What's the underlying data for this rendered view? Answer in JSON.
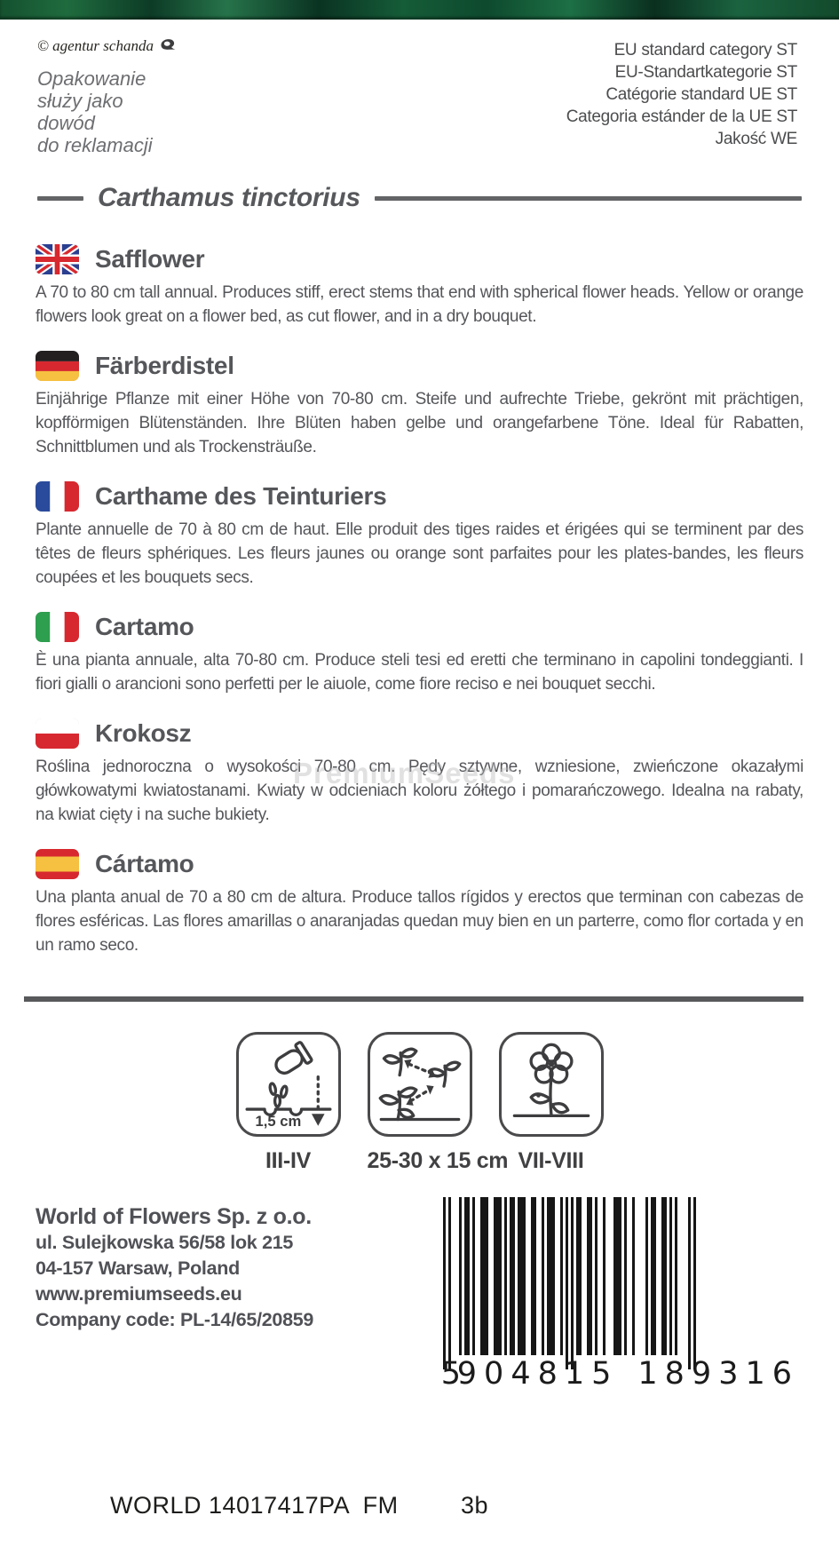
{
  "page": {
    "credit": "© agentur schanda",
    "packaging_note_lines": [
      "Opakowanie",
      "służy jako",
      "dowód",
      "do reklamacji"
    ],
    "eu_category_lines": [
      "EU standard category ST",
      "EU-Standartkategorie ST",
      "Catégorie standard UE ST",
      "Categoria estánder de la UE ST",
      "Jakość WE"
    ],
    "botanical_name": "Carthamus tinctorius",
    "watermark": "PremiumSeeds"
  },
  "sections": [
    {
      "lang": "English",
      "flag_icon": "uk-flag-icon",
      "heading": "Safflower",
      "body": "A 70 to 80 cm tall annual. Produces stiff, erect stems that end with spherical flower heads. Yellow or orange flowers look great on a flower bed, as cut flower, and in a dry bouquet."
    },
    {
      "lang": "Deutsch",
      "flag_icon": "germany-flag-icon",
      "heading": "Färberdistel",
      "body": "Einjährige Pflanze mit einer Höhe von 70-80 cm. Steife und aufrechte Triebe, gekrönt mit prächtigen, kopfförmigen Blütenständen. Ihre Blüten haben gelbe und orangefarbene Töne. Ideal für Rabatten, Schnittblumen und als Trockensträuße."
    },
    {
      "lang": "Français",
      "flag_icon": "france-flag-icon",
      "heading": "Carthame des Teinturiers",
      "body": "Plante annuelle de 70 à 80 cm de haut. Elle produit des tiges raides et érigées qui se terminent par des têtes de fleurs sphériques. Les fleurs jaunes ou orange sont parfaites pour les plates-bandes, les fleurs coupées et les bouquets secs."
    },
    {
      "lang": "Italiano",
      "flag_icon": "italy-flag-icon",
      "heading": "Cartamo",
      "body": "È una pianta annuale, alta 70-80 cm. Produce steli tesi ed eretti che terminano in capolini tondeggianti. I fiori gialli o arancioni sono perfetti per le aiuole, come fiore reciso e nei bouquet secchi."
    },
    {
      "lang": "Polski",
      "flag_icon": "poland-flag-icon",
      "heading": "Krokosz",
      "body": "Roślina jednoroczna o wysokości 70-80 cm. Pędy sztywne, wzniesione, zwieńczone okazałymi główkowatymi kwiatostanami. Kwiaty w odcieniach koloru żółtego i pomarańczowego. Idealna na rabaty, na kwiat cięty i na suche bukiety."
    },
    {
      "lang": "Español",
      "flag_icon": "spain-flag-icon",
      "heading": "Cártamo",
      "body": "Una planta anual de 70 a 80 cm de altura. Produce tallos rígidos y erectos que terminan con cabezas de flores esféricas. Las flores amarillas o anaranjadas quedan muy bien en un parterre, como flor cortada y en un ramo seco."
    }
  ],
  "pictograms": {
    "sowing": {
      "icon": "sowing-depth-icon",
      "label": "III-IV",
      "depth": "1,5 cm"
    },
    "spacing": {
      "icon": "plant-spacing-icon",
      "label": "25-30 x 15 cm"
    },
    "flowering": {
      "icon": "flowering-period-icon",
      "label": "VII-VIII"
    }
  },
  "company": {
    "name": "World of Flowers Sp. z o.o.",
    "lines": [
      "ul. Sulejkowska 56/58 lok 215",
      "04-157 Warsaw, Poland",
      "www.premiumseeds.eu",
      "Company code: PL-14/65/20859"
    ]
  },
  "barcode": {
    "ean": "5904815189316",
    "first_digit": "5",
    "group1": "904815",
    "group2": "189316",
    "pattern": "10100010110100111001110101101110011001011100101010110011010010001110100100001011001101010000101"
  },
  "footer": {
    "left": "WORLD 14017417PA  FM",
    "right": "3b"
  },
  "colors": {
    "text_gray": "#55565a",
    "rule_gray": "#636466",
    "strip_green": "#15512f",
    "flag_red": "#d7282f",
    "flag_blue": "#2b3f90",
    "flag_gold": "#f6c040",
    "flag_green": "#2e9e4f"
  }
}
